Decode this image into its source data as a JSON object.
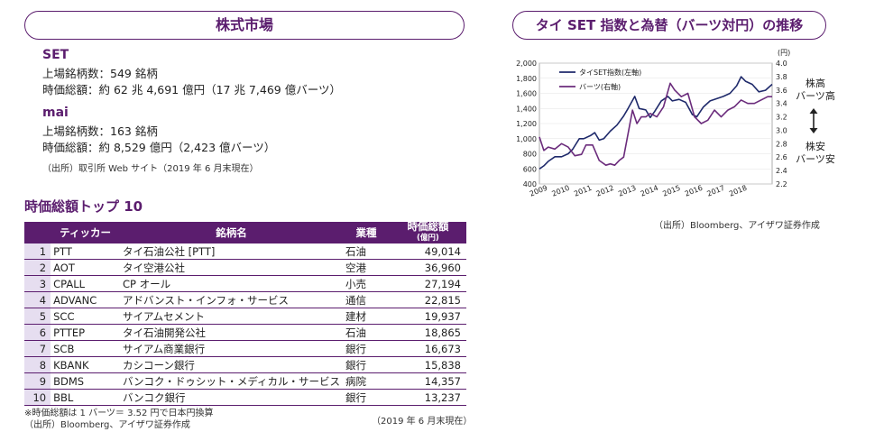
{
  "left": {
    "header": "株式市場",
    "set": {
      "title": "SET",
      "line1": "上場銘柄数：549 銘柄",
      "line2": "時価総額：約 62 兆 4,691 億円（17 兆 7,469 億バーツ）"
    },
    "mai": {
      "title": "mai",
      "line1": "上場銘柄数：163 銘柄",
      "line2": "時価総額：約 8,529 億円（2,423 億バーツ）"
    },
    "source1": "（出所）取引所 Web サイト（2019 年 6 月末現在）"
  },
  "top10": {
    "title": "時価総額トップ 10",
    "headers": {
      "ticker": "ティッカー",
      "name": "銘柄名",
      "sector": "業種",
      "cap_line1": "時価総額",
      "cap_line2": "(億円)"
    },
    "rows": [
      {
        "rank": "1",
        "ticker": "PTT",
        "name": "タイ石油公社 [PTT]",
        "sector": "石油",
        "cap": "49,014"
      },
      {
        "rank": "2",
        "ticker": "AOT",
        "name": "タイ空港公社",
        "sector": "空港",
        "cap": "36,960"
      },
      {
        "rank": "3",
        "ticker": "CPALL",
        "name": "CP オール",
        "sector": "小売",
        "cap": "27,194"
      },
      {
        "rank": "4",
        "ticker": "ADVANC",
        "name": "アドバンスト・インフォ・サービス",
        "sector": "通信",
        "cap": "22,815"
      },
      {
        "rank": "5",
        "ticker": "SCC",
        "name": "サイアムセメント",
        "sector": "建材",
        "cap": "19,937"
      },
      {
        "rank": "6",
        "ticker": "PTTEP",
        "name": "タイ石油開発公社",
        "sector": "石油",
        "cap": "18,865"
      },
      {
        "rank": "7",
        "ticker": "SCB",
        "name": "サイアム商業銀行",
        "sector": "銀行",
        "cap": "16,673"
      },
      {
        "rank": "8",
        "ticker": "KBANK",
        "name": "カシコーン銀行",
        "sector": "銀行",
        "cap": "15,838"
      },
      {
        "rank": "9",
        "ticker": "BDMS",
        "name": "バンコク・ドゥシット・メディカル・サービス",
        "sector": "病院",
        "cap": "14,357"
      },
      {
        "rank": "10",
        "ticker": "BBL",
        "name": "バンコク銀行",
        "sector": "銀行",
        "cap": "13,237"
      }
    ],
    "note": "※時価総額は 1 バーツ＝ 3.52 円で日本円換算",
    "source": "（出所）Bloomberg、アイザワ証券作成",
    "asof": "（2019 年 6 月末現在）"
  },
  "chart_header": "タイ SET 指数と為替（バーツ対円）の推移",
  "chart_source": "（出所）Bloomberg、アイザワ証券作成",
  "side_labels": {
    "top1": "株高",
    "top2": "バーツ高",
    "bottom1": "株安",
    "bottom2": "バーツ安"
  },
  "chart_data": {
    "type": "line",
    "x_labels": [
      "2009",
      "2010",
      "2011",
      "2012",
      "2013",
      "2014",
      "2015",
      "2016",
      "2017",
      "2018"
    ],
    "y_left": {
      "min": 400,
      "max": 2000,
      "ticks": [
        "400",
        "600",
        "800",
        "1,000",
        "1,200",
        "1,400",
        "1,600",
        "1,800",
        "2,000"
      ]
    },
    "y_right": {
      "unit": "(円)",
      "min": 2.2,
      "max": 4.0,
      "ticks": [
        "2.2",
        "2.4",
        "2.6",
        "2.8",
        "3.0",
        "3.2",
        "3.4",
        "3.6",
        "3.8",
        "4.0"
      ]
    },
    "series": [
      {
        "name": "タイSET指数(左軸)",
        "axis": "left",
        "color": "#1f2a6b",
        "t": [
          2009.0,
          2009.2,
          2009.4,
          2009.7,
          2010.0,
          2010.3,
          2010.5,
          2010.8,
          2011.0,
          2011.3,
          2011.5,
          2011.7,
          2011.9,
          2012.2,
          2012.5,
          2012.8,
          2013.0,
          2013.3,
          2013.5,
          2013.8,
          2014.0,
          2014.2,
          2014.5,
          2014.8,
          2015.0,
          2015.3,
          2015.6,
          2015.9,
          2016.1,
          2016.4,
          2016.7,
          2017.0,
          2017.3,
          2017.6,
          2017.9,
          2018.1,
          2018.3,
          2018.6,
          2018.9,
          2019.2,
          2019.5
        ],
        "values": [
          600,
          640,
          700,
          760,
          760,
          800,
          860,
          1000,
          1000,
          1040,
          1080,
          980,
          1000,
          1100,
          1180,
          1300,
          1400,
          1560,
          1400,
          1380,
          1280,
          1360,
          1500,
          1560,
          1500,
          1520,
          1480,
          1320,
          1290,
          1420,
          1500,
          1530,
          1560,
          1600,
          1700,
          1820,
          1760,
          1720,
          1620,
          1640,
          1720
        ]
      },
      {
        "name": "バーツ(右軸)",
        "axis": "right",
        "color": "#6b2c7c",
        "t": [
          2009.0,
          2009.2,
          2009.4,
          2009.7,
          2010.0,
          2010.3,
          2010.6,
          2010.9,
          2011.1,
          2011.4,
          2011.7,
          2012.0,
          2012.2,
          2012.4,
          2012.6,
          2012.8,
          2013.0,
          2013.2,
          2013.4,
          2013.6,
          2013.8,
          2014.0,
          2014.3,
          2014.6,
          2014.9,
          2015.1,
          2015.4,
          2015.7,
          2016.0,
          2016.3,
          2016.6,
          2016.9,
          2017.2,
          2017.5,
          2017.8,
          2018.1,
          2018.4,
          2018.7,
          2019.0,
          2019.3,
          2019.5
        ],
        "values": [
          2.9,
          2.7,
          2.75,
          2.72,
          2.8,
          2.75,
          2.62,
          2.64,
          2.78,
          2.78,
          2.55,
          2.48,
          2.5,
          2.48,
          2.55,
          2.6,
          2.95,
          3.3,
          3.1,
          3.2,
          3.2,
          3.25,
          3.2,
          3.35,
          3.7,
          3.6,
          3.5,
          3.55,
          3.2,
          3.1,
          3.15,
          3.3,
          3.2,
          3.3,
          3.35,
          3.45,
          3.4,
          3.4,
          3.45,
          3.5,
          3.5
        ]
      }
    ]
  }
}
